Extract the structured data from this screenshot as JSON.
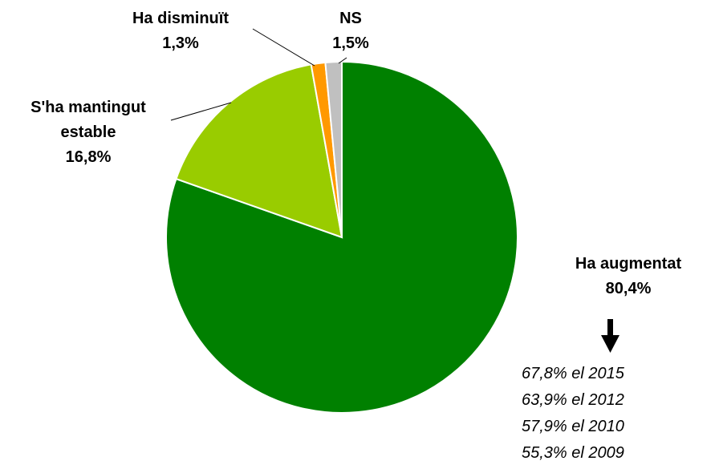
{
  "chart_data": {
    "type": "pie",
    "categories": [
      "Ha augmentat",
      "S'ha mantingut estable",
      "Ha disminuït",
      "NS"
    ],
    "values": [
      80.4,
      16.8,
      1.3,
      1.5
    ],
    "value_labels": [
      "80,4%",
      "16,8%",
      "1,3%",
      "1,5%"
    ],
    "colors": [
      "#008000",
      "#99cc00",
      "#ff9900",
      "#c0c0c0"
    ],
    "annotations": [
      "67,8% el 2015",
      "63,9% el 2012",
      "57,9% el 2010",
      "55,3% el 2009"
    ]
  }
}
